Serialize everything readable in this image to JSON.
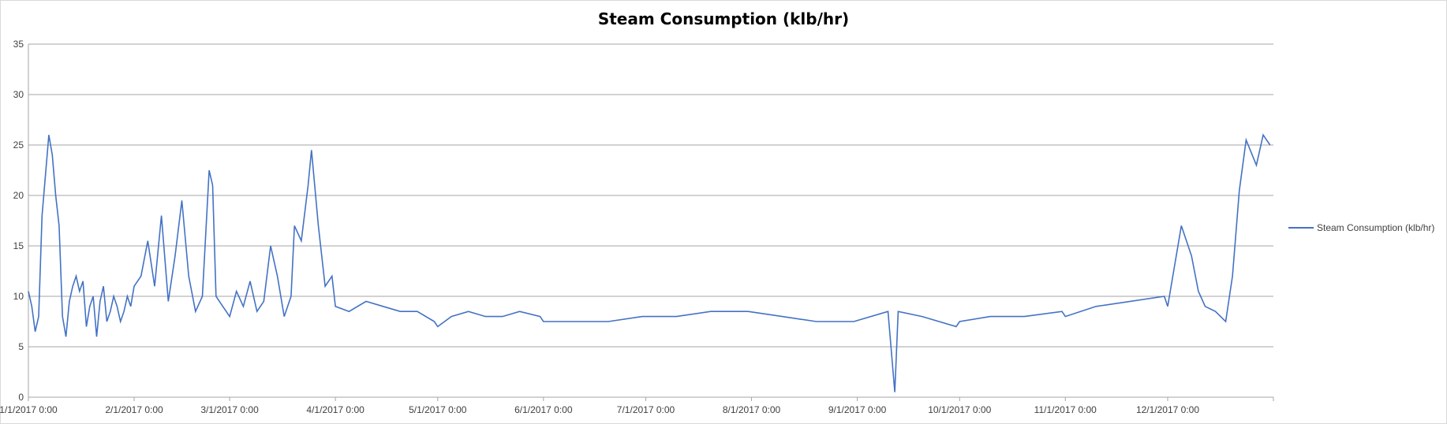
{
  "chart_data": {
    "type": "line",
    "title": "Steam Consumption  (klb/hr)",
    "xlabel": "",
    "ylabel": "",
    "ylim": [
      0,
      35
    ],
    "yticks": [
      0,
      5,
      10,
      15,
      20,
      25,
      30,
      35
    ],
    "xlim": [
      "1/1/2017 0:00",
      "1/1/2018 0:00"
    ],
    "xticks": [
      "1/1/2017 0:00",
      "2/1/2017 0:00",
      "3/1/2017 0:00",
      "4/1/2017 0:00",
      "5/1/2017 0:00",
      "6/1/2017 0:00",
      "7/1/2017 0:00",
      "8/1/2017 0:00",
      "9/1/2017 0:00",
      "10/1/2017 0:00",
      "11/1/2017 0:00",
      "12/1/2017 0:00"
    ],
    "grid": "horizontal",
    "legend_position": "right",
    "line_color": "#4472c4",
    "series": [
      {
        "name": "Steam Consumption  (klb/hr)",
        "points": [
          [
            "2017-01-01",
            10.5
          ],
          [
            "2017-01-02",
            9.0
          ],
          [
            "2017-01-03",
            6.5
          ],
          [
            "2017-01-04",
            8.0
          ],
          [
            "2017-01-05",
            18.0
          ],
          [
            "2017-01-06",
            22.0
          ],
          [
            "2017-01-07",
            26.0
          ],
          [
            "2017-01-08",
            24.0
          ],
          [
            "2017-01-09",
            20.0
          ],
          [
            "2017-01-10",
            17.0
          ],
          [
            "2017-01-11",
            8.0
          ],
          [
            "2017-01-12",
            6.0
          ],
          [
            "2017-01-13",
            9.5
          ],
          [
            "2017-01-14",
            11.0
          ],
          [
            "2017-01-15",
            12.0
          ],
          [
            "2017-01-16",
            10.5
          ],
          [
            "2017-01-17",
            11.5
          ],
          [
            "2017-01-18",
            7.0
          ],
          [
            "2017-01-19",
            9.0
          ],
          [
            "2017-01-20",
            10.0
          ],
          [
            "2017-01-21",
            6.0
          ],
          [
            "2017-01-22",
            9.5
          ],
          [
            "2017-01-23",
            11.0
          ],
          [
            "2017-01-24",
            7.5
          ],
          [
            "2017-01-25",
            8.5
          ],
          [
            "2017-01-26",
            10.0
          ],
          [
            "2017-01-27",
            9.0
          ],
          [
            "2017-01-28",
            7.5
          ],
          [
            "2017-01-29",
            8.5
          ],
          [
            "2017-01-30",
            10.0
          ],
          [
            "2017-01-31",
            9.0
          ],
          [
            "2017-02-01",
            11.0
          ],
          [
            "2017-02-03",
            12.0
          ],
          [
            "2017-02-05",
            15.5
          ],
          [
            "2017-02-07",
            11.0
          ],
          [
            "2017-02-09",
            18.0
          ],
          [
            "2017-02-11",
            9.5
          ],
          [
            "2017-02-13",
            14.0
          ],
          [
            "2017-02-15",
            19.5
          ],
          [
            "2017-02-17",
            12.0
          ],
          [
            "2017-02-19",
            8.5
          ],
          [
            "2017-02-21",
            10.0
          ],
          [
            "2017-02-23",
            22.5
          ],
          [
            "2017-02-24",
            21.0
          ],
          [
            "2017-02-25",
            10.0
          ],
          [
            "2017-02-27",
            9.0
          ],
          [
            "2017-03-01",
            8.0
          ],
          [
            "2017-03-03",
            10.5
          ],
          [
            "2017-03-05",
            9.0
          ],
          [
            "2017-03-07",
            11.5
          ],
          [
            "2017-03-09",
            8.5
          ],
          [
            "2017-03-11",
            9.5
          ],
          [
            "2017-03-13",
            15.0
          ],
          [
            "2017-03-15",
            12.0
          ],
          [
            "2017-03-17",
            8.0
          ],
          [
            "2017-03-19",
            10.0
          ],
          [
            "2017-03-20",
            17.0
          ],
          [
            "2017-03-22",
            15.5
          ],
          [
            "2017-03-24",
            21.0
          ],
          [
            "2017-03-25",
            24.5
          ],
          [
            "2017-03-27",
            17.0
          ],
          [
            "2017-03-29",
            11.0
          ],
          [
            "2017-03-31",
            12.0
          ],
          [
            "2017-04-01",
            9.0
          ],
          [
            "2017-04-05",
            8.5
          ],
          [
            "2017-04-10",
            9.5
          ],
          [
            "2017-04-15",
            9.0
          ],
          [
            "2017-04-20",
            8.5
          ],
          [
            "2017-04-25",
            8.5
          ],
          [
            "2017-04-30",
            7.5
          ],
          [
            "2017-05-01",
            7.0
          ],
          [
            "2017-05-05",
            8.0
          ],
          [
            "2017-05-10",
            8.5
          ],
          [
            "2017-05-15",
            8.0
          ],
          [
            "2017-05-20",
            8.0
          ],
          [
            "2017-05-25",
            8.5
          ],
          [
            "2017-05-31",
            8.0
          ],
          [
            "2017-06-01",
            7.5
          ],
          [
            "2017-06-10",
            7.5
          ],
          [
            "2017-06-20",
            7.5
          ],
          [
            "2017-06-30",
            8.0
          ],
          [
            "2017-07-10",
            8.0
          ],
          [
            "2017-07-20",
            8.5
          ],
          [
            "2017-07-31",
            8.5
          ],
          [
            "2017-08-10",
            8.0
          ],
          [
            "2017-08-20",
            7.5
          ],
          [
            "2017-08-31",
            7.5
          ],
          [
            "2017-09-10",
            8.5
          ],
          [
            "2017-09-12",
            0.5
          ],
          [
            "2017-09-13",
            8.5
          ],
          [
            "2017-09-20",
            8.0
          ],
          [
            "2017-09-30",
            7.0
          ],
          [
            "2017-10-01",
            7.5
          ],
          [
            "2017-10-10",
            8.0
          ],
          [
            "2017-10-20",
            8.0
          ],
          [
            "2017-10-31",
            8.5
          ],
          [
            "2017-11-01",
            8.0
          ],
          [
            "2017-11-10",
            9.0
          ],
          [
            "2017-11-20",
            9.5
          ],
          [
            "2017-11-30",
            10.0
          ],
          [
            "2017-12-01",
            9.0
          ],
          [
            "2017-12-05",
            17.0
          ],
          [
            "2017-12-08",
            14.0
          ],
          [
            "2017-12-10",
            10.5
          ],
          [
            "2017-12-12",
            9.0
          ],
          [
            "2017-12-15",
            8.5
          ],
          [
            "2017-12-18",
            7.5
          ],
          [
            "2017-12-20",
            12.0
          ],
          [
            "2017-12-22",
            20.5
          ],
          [
            "2017-12-24",
            25.5
          ],
          [
            "2017-12-27",
            23.0
          ],
          [
            "2017-12-29",
            26.0
          ],
          [
            "2017-12-31",
            25.0
          ]
        ]
      }
    ]
  }
}
